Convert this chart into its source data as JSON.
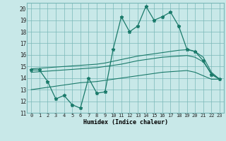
{
  "title": "",
  "xlabel": "Humidex (Indice chaleur)",
  "bg_color": "#c8e8e8",
  "grid_color": "#7ab8b8",
  "line_color": "#1a7a6a",
  "xlim": [
    -0.5,
    23.5
  ],
  "ylim": [
    11,
    20.5
  ],
  "yticks": [
    11,
    12,
    13,
    14,
    15,
    16,
    17,
    18,
    19,
    20
  ],
  "xticks": [
    0,
    1,
    2,
    3,
    4,
    5,
    6,
    7,
    8,
    9,
    10,
    11,
    12,
    13,
    14,
    15,
    16,
    17,
    18,
    19,
    20,
    21,
    22,
    23
  ],
  "main_line": [
    14.7,
    14.7,
    13.7,
    12.2,
    12.5,
    11.7,
    11.4,
    14.0,
    12.7,
    12.8,
    16.5,
    19.3,
    18.0,
    18.5,
    20.2,
    19.0,
    19.3,
    19.7,
    18.5,
    16.5,
    16.3,
    15.5,
    14.3,
    13.9
  ],
  "upper_line": [
    14.8,
    14.85,
    14.9,
    14.95,
    15.0,
    15.05,
    15.1,
    15.15,
    15.2,
    15.3,
    15.45,
    15.6,
    15.75,
    15.9,
    16.0,
    16.1,
    16.2,
    16.3,
    16.4,
    16.45,
    16.3,
    15.8,
    14.5,
    13.9
  ],
  "mid_line": [
    14.5,
    14.55,
    14.6,
    14.65,
    14.7,
    14.75,
    14.8,
    14.85,
    14.9,
    15.0,
    15.1,
    15.2,
    15.35,
    15.5,
    15.6,
    15.7,
    15.8,
    15.85,
    15.9,
    15.95,
    15.8,
    15.4,
    14.4,
    13.9
  ],
  "lower_line": [
    13.0,
    13.1,
    13.2,
    13.3,
    13.4,
    13.5,
    13.6,
    13.65,
    13.7,
    13.8,
    13.9,
    14.0,
    14.1,
    14.2,
    14.3,
    14.4,
    14.5,
    14.55,
    14.6,
    14.65,
    14.5,
    14.2,
    13.9,
    13.9
  ]
}
